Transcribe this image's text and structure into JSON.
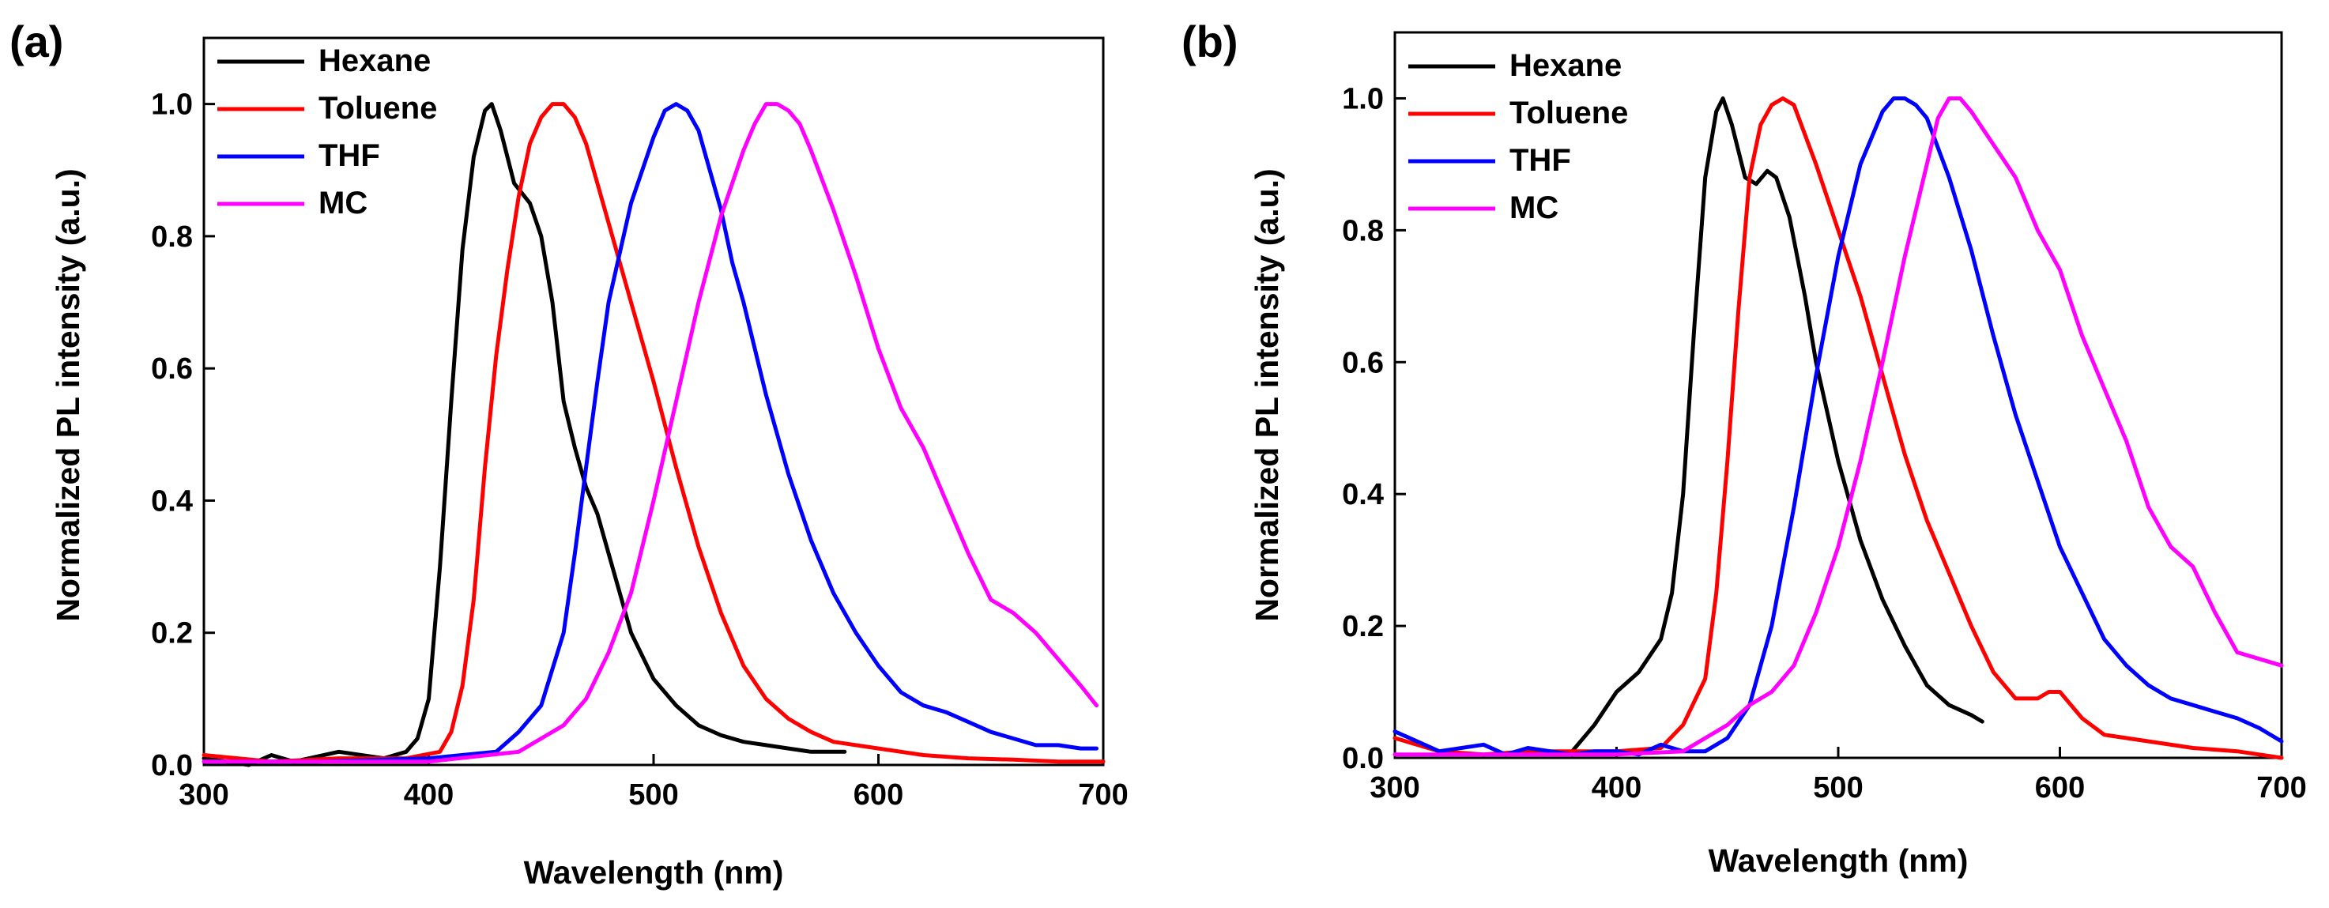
{
  "colors": {
    "Hexane": "#000000",
    "Toluene": "#ff0000",
    "THF": "#0000ff",
    "MC": "#ff00ff"
  },
  "chart_data": [
    {
      "type": "line",
      "panel_label": "(a)",
      "xlabel": "Wavelength (nm)",
      "ylabel": "Normalized PL intensity (a.u.)",
      "xlim": [
        300,
        700
      ],
      "ylim": [
        0,
        1.1
      ],
      "xticks": [
        300,
        400,
        500,
        600,
        700
      ],
      "yticks": [
        0.0,
        0.2,
        0.4,
        0.6,
        0.8,
        1.0
      ],
      "xtick_labels": [
        "300",
        "400",
        "500",
        "600",
        "700"
      ],
      "ytick_labels": [
        "0.0",
        "0.2",
        "0.4",
        "0.6",
        "0.8",
        "1.0"
      ],
      "legend_position": "top-left",
      "series": [
        {
          "name": "Hexane",
          "color": "#000000",
          "x": [
            300,
            320,
            330,
            340,
            360,
            380,
            390,
            395,
            400,
            405,
            410,
            415,
            420,
            425,
            428,
            432,
            438,
            445,
            450,
            455,
            460,
            465,
            470,
            475,
            480,
            490,
            500,
            510,
            520,
            530,
            540,
            550,
            560,
            570,
            585
          ],
          "y": [
            0.01,
            0.0,
            0.015,
            0.005,
            0.02,
            0.01,
            0.02,
            0.04,
            0.1,
            0.3,
            0.55,
            0.78,
            0.92,
            0.99,
            1.0,
            0.96,
            0.88,
            0.85,
            0.8,
            0.7,
            0.55,
            0.48,
            0.42,
            0.38,
            0.32,
            0.2,
            0.13,
            0.09,
            0.06,
            0.045,
            0.035,
            0.03,
            0.025,
            0.02,
            0.02
          ]
        },
        {
          "name": "Toluene",
          "color": "#ff0000",
          "x": [
            300,
            330,
            360,
            390,
            405,
            410,
            415,
            420,
            425,
            430,
            435,
            440,
            445,
            450,
            455,
            460,
            465,
            470,
            475,
            480,
            490,
            500,
            510,
            520,
            530,
            540,
            550,
            560,
            570,
            580,
            600,
            620,
            640,
            660,
            680,
            700
          ],
          "y": [
            0.015,
            0.005,
            0.01,
            0.01,
            0.02,
            0.05,
            0.12,
            0.25,
            0.45,
            0.62,
            0.75,
            0.86,
            0.94,
            0.98,
            1.0,
            1.0,
            0.98,
            0.94,
            0.88,
            0.82,
            0.7,
            0.58,
            0.45,
            0.33,
            0.23,
            0.15,
            0.1,
            0.07,
            0.05,
            0.035,
            0.025,
            0.015,
            0.01,
            0.008,
            0.005,
            0.005
          ]
        },
        {
          "name": "THF",
          "color": "#0000ff",
          "x": [
            300,
            350,
            400,
            430,
            440,
            450,
            460,
            465,
            470,
            475,
            480,
            490,
            500,
            505,
            510,
            515,
            520,
            525,
            530,
            535,
            540,
            550,
            560,
            570,
            580,
            590,
            600,
            610,
            620,
            630,
            640,
            650,
            660,
            670,
            680,
            690,
            697
          ],
          "y": [
            0.005,
            0.005,
            0.01,
            0.02,
            0.05,
            0.09,
            0.2,
            0.32,
            0.45,
            0.58,
            0.7,
            0.85,
            0.95,
            0.99,
            1.0,
            0.99,
            0.96,
            0.9,
            0.84,
            0.76,
            0.7,
            0.56,
            0.44,
            0.34,
            0.26,
            0.2,
            0.15,
            0.11,
            0.09,
            0.08,
            0.065,
            0.05,
            0.04,
            0.03,
            0.03,
            0.025,
            0.025
          ]
        },
        {
          "name": "MC",
          "color": "#ff00ff",
          "x": [
            300,
            400,
            440,
            450,
            460,
            470,
            480,
            490,
            500,
            510,
            520,
            530,
            540,
            545,
            550,
            555,
            560,
            565,
            570,
            580,
            590,
            600,
            610,
            620,
            630,
            640,
            650,
            660,
            670,
            680,
            690,
            697
          ],
          "y": [
            0.005,
            0.005,
            0.02,
            0.04,
            0.06,
            0.1,
            0.17,
            0.26,
            0.4,
            0.55,
            0.7,
            0.83,
            0.93,
            0.97,
            1.0,
            1.0,
            0.99,
            0.97,
            0.93,
            0.84,
            0.74,
            0.63,
            0.54,
            0.48,
            0.4,
            0.32,
            0.25,
            0.23,
            0.2,
            0.16,
            0.12,
            0.09
          ]
        }
      ]
    },
    {
      "type": "line",
      "panel_label": "(b)",
      "xlabel": "Wavelength (nm)",
      "ylabel": "Normalized PL intensity (a.u.)",
      "xlim": [
        300,
        700
      ],
      "ylim": [
        0,
        1.1
      ],
      "xticks": [
        300,
        400,
        500,
        600,
        700
      ],
      "yticks": [
        0.0,
        0.2,
        0.4,
        0.6,
        0.8,
        1.0
      ],
      "xtick_labels": [
        "300",
        "400",
        "500",
        "600",
        "700"
      ],
      "ytick_labels": [
        "0.0",
        "0.2",
        "0.4",
        "0.6",
        "0.8",
        "1.0"
      ],
      "legend_position": "top-left",
      "series": [
        {
          "name": "Hexane",
          "color": "#000000",
          "x": [
            380,
            390,
            400,
            410,
            420,
            425,
            430,
            435,
            440,
            445,
            448,
            452,
            458,
            463,
            468,
            472,
            478,
            485,
            490,
            500,
            510,
            520,
            530,
            540,
            550,
            560,
            565
          ],
          "y": [
            0.01,
            0.05,
            0.1,
            0.13,
            0.18,
            0.25,
            0.4,
            0.65,
            0.88,
            0.98,
            1.0,
            0.96,
            0.88,
            0.87,
            0.89,
            0.88,
            0.82,
            0.7,
            0.6,
            0.45,
            0.33,
            0.24,
            0.17,
            0.11,
            0.08,
            0.065,
            0.055
          ]
        },
        {
          "name": "Toluene",
          "color": "#ff0000",
          "x": [
            300,
            320,
            340,
            360,
            380,
            400,
            420,
            430,
            440,
            445,
            450,
            455,
            460,
            465,
            470,
            475,
            480,
            490,
            500,
            510,
            520,
            530,
            540,
            550,
            560,
            570,
            580,
            590,
            595,
            600,
            610,
            620,
            640,
            660,
            680,
            700
          ],
          "y": [
            0.03,
            0.01,
            0.005,
            0.01,
            0.01,
            0.01,
            0.015,
            0.05,
            0.12,
            0.25,
            0.45,
            0.68,
            0.88,
            0.96,
            0.99,
            1.0,
            0.99,
            0.9,
            0.8,
            0.7,
            0.58,
            0.46,
            0.36,
            0.28,
            0.2,
            0.13,
            0.09,
            0.09,
            0.1,
            0.1,
            0.06,
            0.035,
            0.025,
            0.015,
            0.01,
            0.0
          ]
        },
        {
          "name": "THF",
          "color": "#0000ff",
          "x": [
            300,
            320,
            340,
            350,
            360,
            370,
            380,
            390,
            400,
            410,
            420,
            430,
            440,
            450,
            460,
            470,
            480,
            490,
            500,
            510,
            520,
            525,
            530,
            535,
            540,
            550,
            560,
            570,
            580,
            590,
            600,
            610,
            620,
            630,
            640,
            650,
            660,
            670,
            680,
            690,
            700
          ],
          "y": [
            0.04,
            0.01,
            0.02,
            0.005,
            0.015,
            0.01,
            0.005,
            0.01,
            0.01,
            0.005,
            0.02,
            0.01,
            0.01,
            0.03,
            0.08,
            0.2,
            0.38,
            0.58,
            0.76,
            0.9,
            0.98,
            1.0,
            1.0,
            0.99,
            0.97,
            0.88,
            0.77,
            0.64,
            0.52,
            0.42,
            0.32,
            0.25,
            0.18,
            0.14,
            0.11,
            0.09,
            0.08,
            0.07,
            0.06,
            0.045,
            0.025
          ]
        },
        {
          "name": "MC",
          "color": "#ff00ff",
          "x": [
            300,
            400,
            430,
            440,
            450,
            460,
            470,
            480,
            490,
            500,
            510,
            520,
            530,
            540,
            545,
            550,
            555,
            560,
            570,
            580,
            590,
            600,
            610,
            620,
            630,
            640,
            650,
            660,
            670,
            680,
            690,
            700
          ],
          "y": [
            0.005,
            0.005,
            0.01,
            0.03,
            0.05,
            0.08,
            0.1,
            0.14,
            0.22,
            0.32,
            0.45,
            0.6,
            0.76,
            0.9,
            0.97,
            1.0,
            1.0,
            0.98,
            0.93,
            0.88,
            0.8,
            0.74,
            0.64,
            0.56,
            0.48,
            0.38,
            0.32,
            0.29,
            0.22,
            0.16,
            0.15,
            0.14
          ]
        }
      ]
    }
  ]
}
